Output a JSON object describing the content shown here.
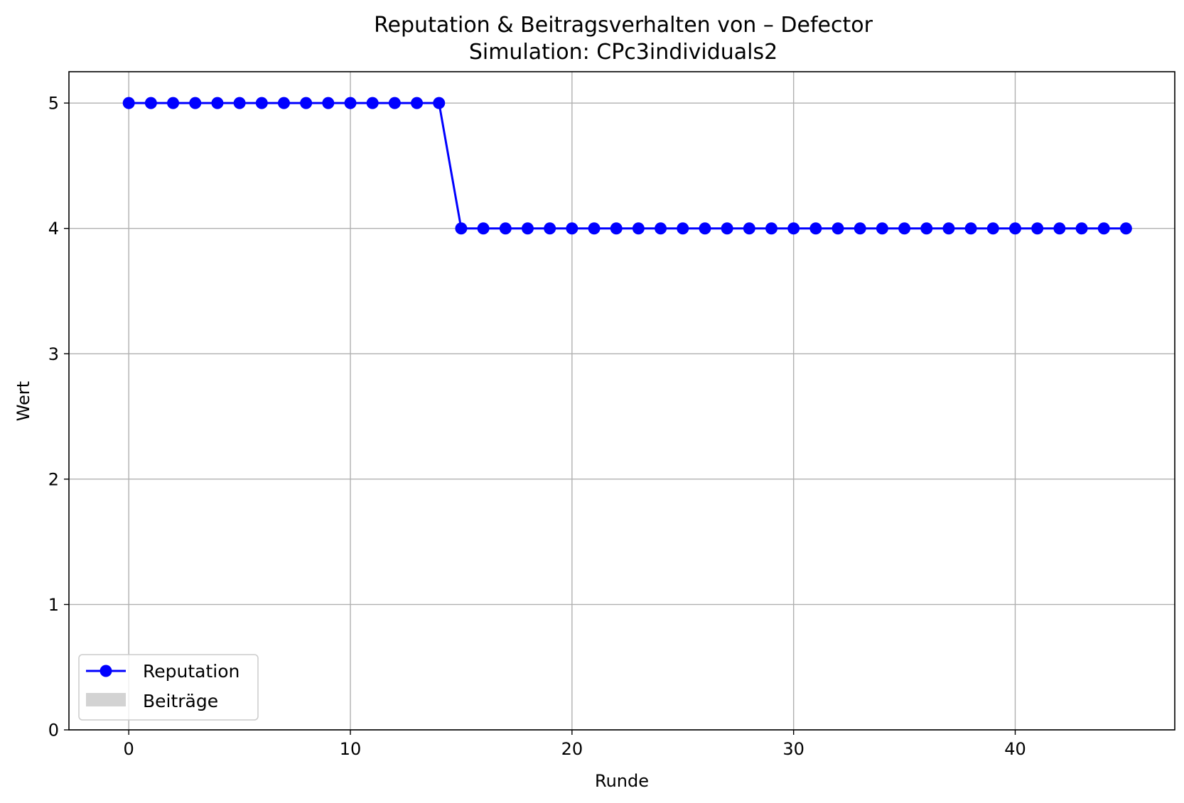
{
  "chart_data": {
    "type": "line",
    "title": "Reputation & Beitragsverhalten von – Defector",
    "subtitle": "Simulation: CPc3individuals2",
    "xlabel": "Runde",
    "ylabel": "Wert",
    "xlim": [
      -2.7,
      47.2
    ],
    "ylim": [
      0,
      5.25
    ],
    "xticks": [
      0,
      10,
      20,
      30,
      40
    ],
    "yticks": [
      0,
      1,
      2,
      3,
      4,
      5
    ],
    "xtick_labels": [
      "0",
      "10",
      "20",
      "30",
      "40"
    ],
    "ytick_labels": [
      "0",
      "1",
      "2",
      "3",
      "4",
      "5"
    ],
    "grid": true,
    "legend_position": "lower-left",
    "series": [
      {
        "name": "Reputation",
        "kind": "line-with-markers",
        "color": "#0000ff",
        "x": [
          0,
          1,
          2,
          3,
          4,
          5,
          6,
          7,
          8,
          9,
          10,
          11,
          12,
          13,
          14,
          15,
          16,
          17,
          18,
          19,
          20,
          21,
          22,
          23,
          24,
          25,
          26,
          27,
          28,
          29,
          30,
          31,
          32,
          33,
          34,
          35,
          36,
          37,
          38,
          39,
          40,
          41,
          42,
          43,
          44,
          45
        ],
        "y": [
          5,
          5,
          5,
          5,
          5,
          5,
          5,
          5,
          5,
          5,
          5,
          5,
          5,
          5,
          5,
          4,
          4,
          4,
          4,
          4,
          4,
          4,
          4,
          4,
          4,
          4,
          4,
          4,
          4,
          4,
          4,
          4,
          4,
          4,
          4,
          4,
          4,
          4,
          4,
          4,
          4,
          4,
          4,
          4,
          4,
          4
        ]
      },
      {
        "name": "Beiträge",
        "kind": "bar",
        "color": "#d3d3d3",
        "x": [],
        "y": []
      }
    ]
  }
}
